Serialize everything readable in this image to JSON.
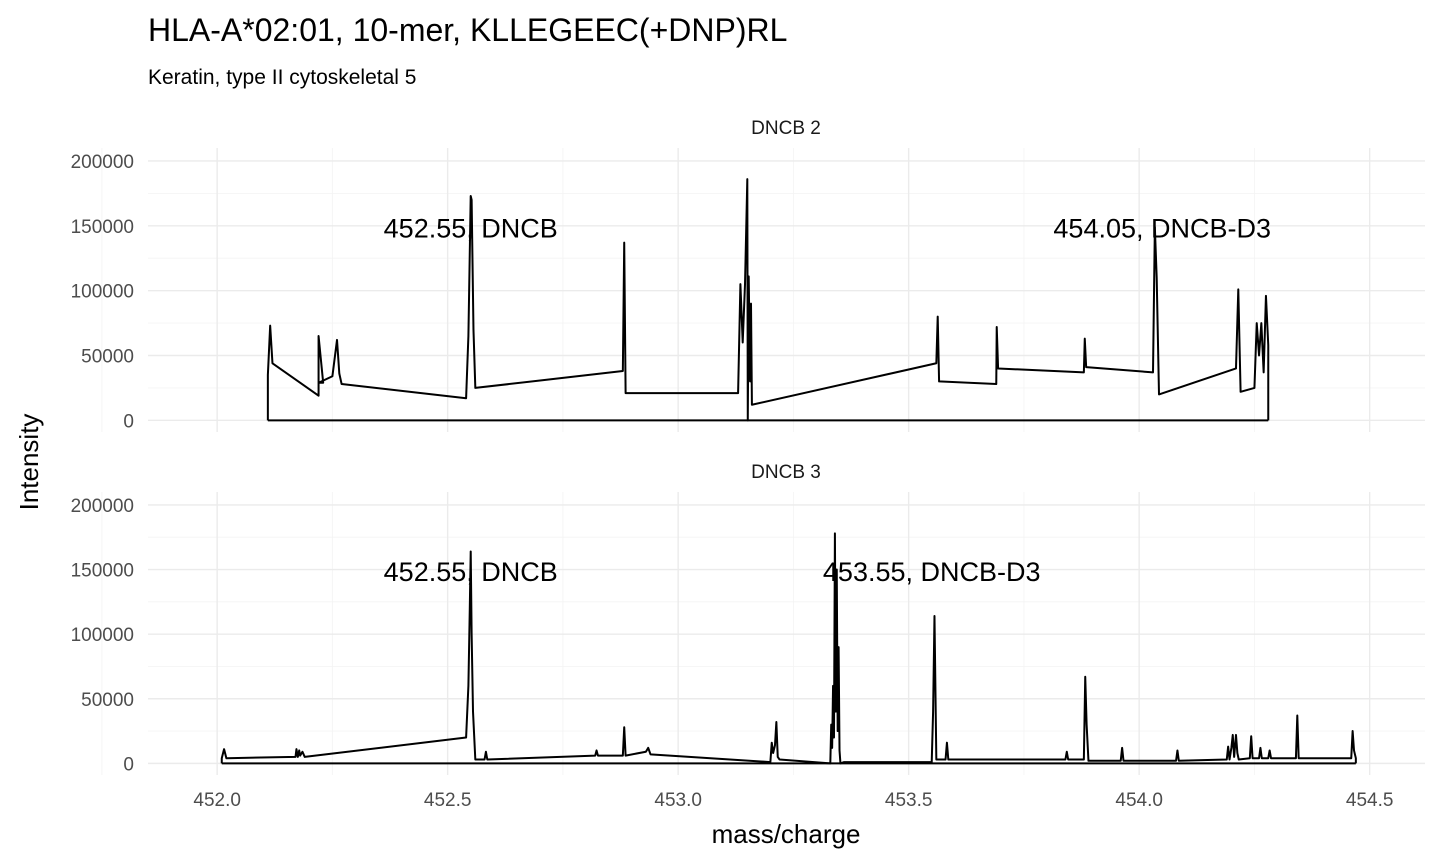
{
  "chart_data": {
    "type": "line",
    "title": "HLA-A*02:01, 10-mer, KLLEGEEC(+DNP)RL",
    "subtitle": "Keratin, type II cytoskeletal 5",
    "xlabel": "mass/charge",
    "ylabel": "Intensity",
    "xlim": [
      451.85,
      454.62
    ],
    "ylim": [
      -9000,
      210000
    ],
    "x_ticks": [
      452.0,
      452.5,
      453.0,
      453.5,
      454.0,
      454.5
    ],
    "x_tick_labels": [
      "452.0",
      "452.5",
      "453.0",
      "453.5",
      "454.0",
      "454.5"
    ],
    "y_ticks": [
      0,
      50000,
      100000,
      150000,
      200000
    ],
    "y_tick_labels": [
      "0",
      "50000",
      "100000",
      "150000",
      "200000"
    ],
    "grid": true,
    "panels": [
      {
        "strip": "DNCB 2",
        "annotations": [
          {
            "text": "452.55, DNCB",
            "x": 452.55,
            "y": 148000
          },
          {
            "text": "454.05, DNCB-D3",
            "x": 454.05,
            "y": 148000
          }
        ],
        "x": [
          452.11,
          452.11,
          452.115,
          452.12,
          452.22,
          452.22,
          452.23,
          452.22,
          452.25,
          452.26,
          452.265,
          452.27,
          452.54,
          452.545,
          452.55,
          452.552,
          452.556,
          452.56,
          452.88,
          452.883,
          452.886,
          453.13,
          453.135,
          453.14,
          453.145,
          453.15,
          453.151,
          453.153,
          453.156,
          453.158,
          453.16,
          453.56,
          453.563,
          453.566,
          453.69,
          453.691,
          453.694,
          453.88,
          453.882,
          453.885,
          454.03,
          454.034,
          454.038,
          454.043,
          454.21,
          454.215,
          454.22,
          454.25,
          454.255,
          454.26,
          454.265,
          454.27,
          454.275,
          454.28,
          454.28
        ],
        "y": [
          0,
          35000,
          73000,
          44000,
          19000,
          65000,
          29000,
          29000,
          34000,
          62000,
          36000,
          28000,
          17000,
          65000,
          173000,
          170000,
          70000,
          25000,
          38000,
          137000,
          21000,
          21000,
          105000,
          60000,
          105000,
          186000,
          0,
          111000,
          30000,
          90000,
          12000,
          44000,
          80000,
          30000,
          28000,
          72000,
          40000,
          37000,
          63000,
          41000,
          37000,
          149000,
          110000,
          20000,
          40000,
          101000,
          22000,
          25000,
          75000,
          50000,
          75000,
          37000,
          96000,
          58000,
          0
        ],
        "baseline": [
          452.11,
          454.28
        ]
      },
      {
        "strip": "DNCB 3",
        "annotations": [
          {
            "text": "452.55, DNCB",
            "x": 452.55,
            "y": 148000
          },
          {
            "text": "453.55, DNCB-D3",
            "x": 453.55,
            "y": 148000
          }
        ],
        "x": [
          452.01,
          452.01,
          452.015,
          452.02,
          452.17,
          452.172,
          452.175,
          452.178,
          452.18,
          452.185,
          452.19,
          452.54,
          452.545,
          452.548,
          452.55,
          452.552,
          452.555,
          452.56,
          452.58,
          452.583,
          452.586,
          452.82,
          452.823,
          452.826,
          452.88,
          452.883,
          452.886,
          452.93,
          452.935,
          452.94,
          453.2,
          453.203,
          453.206,
          453.21,
          453.213,
          453.216,
          453.22,
          453.33,
          453.332,
          453.334,
          453.336,
          453.338,
          453.34,
          453.342,
          453.344,
          453.346,
          453.348,
          453.35,
          453.352,
          453.36,
          453.55,
          453.553,
          453.556,
          453.56,
          453.58,
          453.583,
          453.586,
          453.84,
          453.843,
          453.846,
          453.88,
          453.883,
          453.886,
          453.89,
          453.96,
          453.963,
          453.966,
          454.08,
          454.083,
          454.086,
          454.19,
          454.193,
          454.196,
          454.2,
          454.203,
          454.206,
          454.21,
          454.213,
          454.216,
          454.24,
          454.243,
          454.246,
          454.26,
          454.263,
          454.266,
          454.28,
          454.283,
          454.286,
          454.34,
          454.343,
          454.346,
          454.46,
          454.463,
          454.466,
          454.47,
          454.47
        ],
        "y": [
          0,
          4000,
          11000,
          4000,
          5000,
          11000,
          5000,
          10000,
          6000,
          9000,
          5000,
          20000,
          60000,
          120000,
          164000,
          100000,
          40000,
          3000,
          3000,
          9000,
          3000,
          6000,
          10000,
          6000,
          6000,
          28000,
          6000,
          9000,
          12000,
          7000,
          1000,
          16000,
          8000,
          14000,
          32000,
          5000,
          3000,
          0,
          30000,
          12000,
          60000,
          20000,
          178000,
          40000,
          150000,
          25000,
          90000,
          10000,
          0,
          1000,
          1000,
          40000,
          114000,
          3000,
          3000,
          16000,
          3000,
          3000,
          9000,
          3000,
          3000,
          67000,
          30000,
          2000,
          2000,
          12000,
          2000,
          2000,
          10000,
          2000,
          3000,
          13000,
          3000,
          12000,
          22000,
          5000,
          22000,
          8000,
          3000,
          4000,
          21000,
          4000,
          4000,
          12000,
          4000,
          4000,
          10000,
          4000,
          4000,
          37000,
          4000,
          4000,
          25000,
          10000,
          4000,
          0
        ],
        "baseline": [
          452.01,
          454.47
        ]
      }
    ]
  }
}
